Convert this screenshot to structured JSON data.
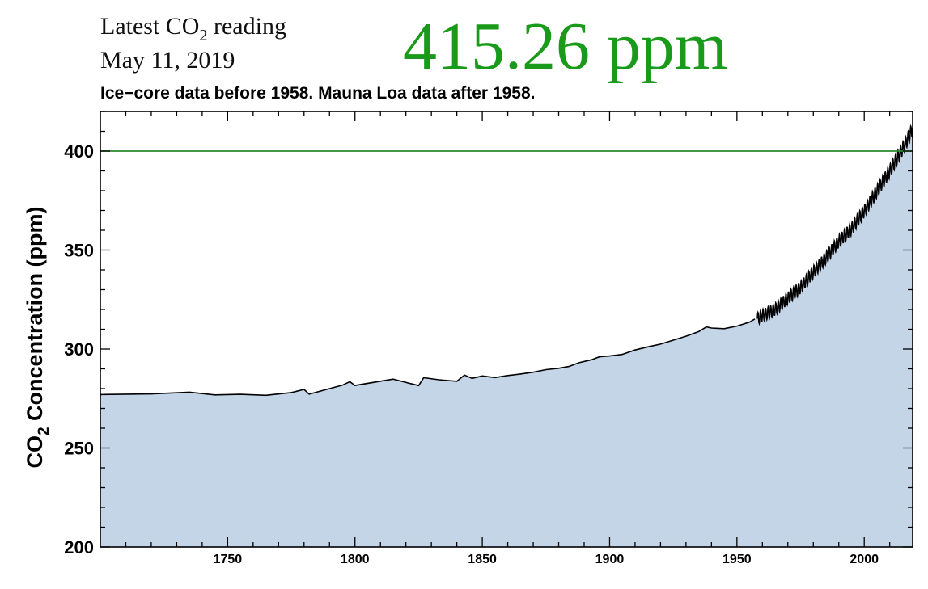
{
  "header": {
    "reading_label_prefix": "Latest CO",
    "reading_label_sub": "2",
    "reading_label_suffix": " reading",
    "reading_date": "May 11, 2019",
    "reading_value": "415.26 ppm",
    "reading_color": "#1a9a1a"
  },
  "chart_data": {
    "type": "area",
    "title": "",
    "subtitle": "Ice−core data before 1958. Mauna Loa data after 1958.",
    "xlabel": "",
    "ylabel": "CO",
    "ylabel_sub": "2",
    "ylabel_suffix": " Concentration (ppm)",
    "xlim": [
      1700,
      2019
    ],
    "ylim": [
      200,
      420
    ],
    "x_ticks": [
      1750,
      1800,
      1850,
      1900,
      1950,
      2000
    ],
    "y_ticks": [
      200,
      250,
      300,
      350,
      400
    ],
    "grid": false,
    "fill_color": "#c4d5e8",
    "line_color": "#000000",
    "reference_line": {
      "y": 400,
      "color": "#2a8a2a"
    },
    "series": [
      {
        "values_x": [
          1700,
          1720,
          1735,
          1745,
          1755,
          1765,
          1775,
          1780,
          1782,
          1795,
          1798,
          1800,
          1815,
          1825,
          1827,
          1833,
          1840,
          1843,
          1846,
          1850,
          1855,
          1860,
          1865,
          1870,
          1875,
          1880,
          1884,
          1888,
          1893,
          1896,
          1900,
          1905,
          1910,
          1915,
          1920,
          1925,
          1930,
          1935,
          1938,
          1940,
          1945,
          1950,
          1955,
          1957
        ],
        "values_y": [
          277,
          277.3,
          278.2,
          276.8,
          277.1,
          276.6,
          278,
          279.6,
          277.2,
          281.7,
          283.5,
          281.6,
          284.8,
          281.5,
          285.5,
          284.5,
          283.7,
          286.8,
          285.2,
          286.4,
          285.6,
          286.6,
          287.4,
          288.3,
          289.6,
          290.3,
          291.2,
          293.1,
          294.6,
          296.1,
          296.5,
          297.3,
          299.5,
          301.1,
          302.5,
          304.5,
          306.5,
          308.8,
          311.2,
          310.6,
          310.3,
          311.6,
          313.6,
          315.2
        ]
      },
      {
        "values_x": [
          1958,
          1960,
          1965,
          1970,
          1975,
          1980,
          1985,
          1990,
          1995,
          2000,
          2005,
          2010,
          2015,
          2018,
          2019
        ],
        "values_y": [
          315.3,
          316.9,
          320,
          325.7,
          331.1,
          338.8,
          346.1,
          354.4,
          360.8,
          369.7,
          379.8,
          389.9,
          401,
          408.5,
          411.5
        ]
      }
    ]
  }
}
